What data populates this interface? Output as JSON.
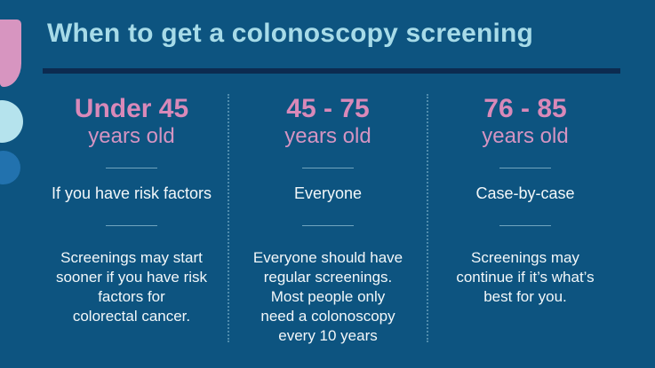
{
  "title": "When to get a colonoscopy screening",
  "columns": [
    {
      "age_range": "Under 45",
      "age_unit": "years old",
      "who": "If you have risk factors",
      "detail": "Screenings may start\nsooner if you have risk\nfactors for\ncolorectal cancer."
    },
    {
      "age_range": "45 - 75",
      "age_unit": "years old",
      "who": "Everyone",
      "detail": "Everyone should have\nregular screenings.\nMost people only\nneed a colonoscopy\nevery 10 years"
    },
    {
      "age_range": "76 - 85",
      "age_unit": "years old",
      "who": "Case-by-case",
      "detail": "Screenings may\ncontinue if it’s what’s\nbest for you."
    }
  ],
  "colors": {
    "background": "#0d5480",
    "title_text": "#a7dbe8",
    "title_underline": "#0c2b50",
    "age_heading_pink": "#d989b9",
    "age_unit_pink": "#d494c2",
    "body_text": "#f2f7f9",
    "column_dotted_divider": "#a0d0e4",
    "decor_pink_tab": "#d795c0",
    "decor_light_blue_circle": "#b5e3ed",
    "decor_blue_circle": "#2272ae"
  },
  "decor_shapes": [
    "pink-tab-shape",
    "light-blue-circle-shape",
    "blue-circle-shape"
  ]
}
